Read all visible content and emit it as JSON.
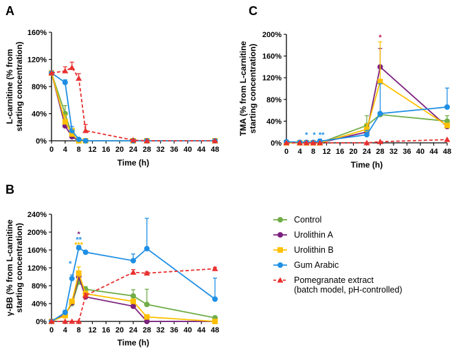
{
  "legend": {
    "items": [
      {
        "key": "control",
        "label": "Control",
        "color": "#70ad47",
        "marker": "circle",
        "dash": false
      },
      {
        "key": "uroA",
        "label": "Urolithin A",
        "color": "#7b1f7e",
        "marker": "circle",
        "dash": false
      },
      {
        "key": "uroB",
        "label": "Urolithin B",
        "color": "#ffc000",
        "marker": "square",
        "dash": false
      },
      {
        "key": "gum",
        "label": "Gum Arabic",
        "color": "#1f8fe5",
        "marker": "circle",
        "dash": false
      },
      {
        "key": "pome",
        "label": "Pomegranate extract",
        "label2": "(batch model, pH-controlled)",
        "color": "#e8302f",
        "marker": "triangle",
        "dash": true
      }
    ]
  },
  "chart_data": [
    {
      "panel": "A",
      "type": "line",
      "xlabel": "Time (h)",
      "ylabel": [
        "L-carnitine (% from",
        "starting concentration)"
      ],
      "xlim": [
        0,
        48
      ],
      "ylim": [
        0,
        160
      ],
      "xticks": [
        0,
        4,
        8,
        12,
        16,
        20,
        24,
        28,
        32,
        36,
        40,
        44,
        48
      ],
      "yticks": [
        0,
        40,
        80,
        120,
        160
      ],
      "yticklabels": [
        "0%",
        "40%",
        "80%",
        "120%",
        "160%"
      ],
      "series": [
        {
          "key": "control",
          "points": [
            [
              0,
              100
            ],
            [
              4,
              40
            ],
            [
              6,
              8
            ],
            [
              8,
              0
            ],
            [
              10,
              0
            ],
            [
              24,
              0
            ],
            [
              28,
              0
            ],
            [
              48,
              0
            ]
          ],
          "err": [
            0,
            12,
            3,
            0,
            0,
            0,
            0,
            0
          ]
        },
        {
          "key": "uroA",
          "points": [
            [
              0,
              100
            ],
            [
              4,
              22
            ],
            [
              6,
              6
            ],
            [
              8,
              0
            ],
            [
              10,
              0
            ],
            [
              24,
              0
            ],
            [
              28,
              0
            ],
            [
              48,
              0
            ]
          ],
          "err": [
            0,
            8,
            2,
            0,
            0,
            0,
            0,
            0
          ]
        },
        {
          "key": "uroB",
          "points": [
            [
              0,
              100
            ],
            [
              4,
              28
            ],
            [
              6,
              10
            ],
            [
              8,
              0
            ],
            [
              10,
              0
            ],
            [
              24,
              0
            ],
            [
              28,
              0
            ],
            [
              48,
              0
            ]
          ],
          "err": [
            0,
            10,
            3,
            0,
            0,
            0,
            0,
            0
          ]
        },
        {
          "key": "gum",
          "points": [
            [
              0,
              100
            ],
            [
              4,
              86
            ],
            [
              6,
              15
            ],
            [
              8,
              2
            ],
            [
              10,
              0
            ],
            [
              24,
              0
            ],
            [
              28,
              0
            ],
            [
              48,
              0
            ]
          ],
          "err": [
            0,
            4,
            6,
            1,
            0,
            0,
            0,
            0
          ]
        },
        {
          "key": "pome",
          "points": [
            [
              0,
              100
            ],
            [
              4,
              103
            ],
            [
              6,
              108
            ],
            [
              8,
              92
            ],
            [
              10,
              15
            ],
            [
              24,
              1
            ],
            [
              28,
              0
            ],
            [
              48,
              0
            ]
          ],
          "err": [
            0,
            6,
            8,
            7,
            9,
            0,
            0,
            0
          ]
        }
      ],
      "annotations": [
        {
          "text": "*",
          "x": 6.5,
          "y": 12,
          "color": "#ffc000"
        }
      ]
    },
    {
      "panel": "B",
      "type": "line",
      "xlabel": "Time (h)",
      "ylabel": [
        "γ-BB (% from L-carnitine",
        "starting concentration)"
      ],
      "xlim": [
        0,
        48
      ],
      "ylim": [
        0,
        240
      ],
      "xticks": [
        0,
        4,
        8,
        12,
        16,
        20,
        24,
        28,
        32,
        36,
        40,
        44,
        48
      ],
      "yticks": [
        0,
        40,
        80,
        120,
        160,
        200,
        240
      ],
      "yticklabels": [
        "0%",
        "40%",
        "80%",
        "120%",
        "160%",
        "200%",
        "240%"
      ],
      "series": [
        {
          "key": "control",
          "points": [
            [
              0,
              0
            ],
            [
              4,
              15
            ],
            [
              6,
              40
            ],
            [
              8,
              88
            ],
            [
              10,
              72
            ],
            [
              24,
              57
            ],
            [
              28,
              38
            ],
            [
              48,
              8
            ]
          ],
          "err": [
            0,
            3,
            6,
            10,
            6,
            14,
            34,
            4
          ]
        },
        {
          "key": "uroA",
          "points": [
            [
              0,
              0
            ],
            [
              4,
              15
            ],
            [
              6,
              42
            ],
            [
              8,
              100
            ],
            [
              10,
              55
            ],
            [
              24,
              34
            ],
            [
              28,
              0
            ],
            [
              48,
              0
            ]
          ],
          "err": [
            0,
            3,
            5,
            10,
            6,
            5,
            0,
            0
          ]
        },
        {
          "key": "uroB",
          "points": [
            [
              0,
              0
            ],
            [
              4,
              13
            ],
            [
              6,
              45
            ],
            [
              8,
              108
            ],
            [
              10,
              62
            ],
            [
              24,
              45
            ],
            [
              28,
              10
            ],
            [
              48,
              0
            ]
          ],
          "err": [
            0,
            3,
            5,
            14,
            6,
            5,
            4,
            0
          ]
        },
        {
          "key": "gum",
          "points": [
            [
              0,
              0
            ],
            [
              4,
              20
            ],
            [
              6,
              96
            ],
            [
              8,
              165
            ],
            [
              10,
              155
            ],
            [
              24,
              136
            ],
            [
              28,
              163
            ],
            [
              48,
              50
            ]
          ],
          "err": [
            0,
            5,
            8,
            5,
            2,
            15,
            68,
            47
          ]
        },
        {
          "key": "pome",
          "points": [
            [
              0,
              0
            ],
            [
              4,
              0
            ],
            [
              6,
              0
            ],
            [
              8,
              0
            ],
            [
              10,
              58
            ],
            [
              24,
              110
            ],
            [
              28,
              108
            ],
            [
              48,
              118
            ]
          ],
          "err": [
            0,
            0,
            0,
            0,
            5,
            6,
            3,
            3
          ]
        }
      ],
      "annotations": [
        {
          "text": "*",
          "x": 5.5,
          "y": 124,
          "color": "#1f8fe5"
        },
        {
          "text": "*",
          "x": 8,
          "y": 190,
          "color": "#7b1f7e"
        },
        {
          "text": "**",
          "x": 8,
          "y": 178,
          "color": "#1f8fe5"
        },
        {
          "text": "***",
          "x": 8,
          "y": 166,
          "color": "#ffc000"
        }
      ]
    },
    {
      "panel": "C",
      "type": "line",
      "xlabel": "Time (h)",
      "ylabel": [
        "TMA (% from L-carnitine",
        "starting concentration)"
      ],
      "xlim": [
        0,
        48
      ],
      "ylim": [
        0,
        200
      ],
      "xticks": [
        0,
        4,
        8,
        12,
        16,
        20,
        24,
        28,
        32,
        36,
        40,
        44,
        48
      ],
      "yticks": [
        0,
        40,
        80,
        120,
        160,
        200
      ],
      "yticklabels": [
        "0%",
        "40%",
        "80%",
        "120%",
        "160%",
        "200%"
      ],
      "series": [
        {
          "key": "control",
          "points": [
            [
              0,
              0
            ],
            [
              4,
              0
            ],
            [
              6,
              0
            ],
            [
              8,
              0
            ],
            [
              10,
              0
            ],
            [
              24,
              32
            ],
            [
              28,
              52
            ],
            [
              48,
              40
            ]
          ],
          "err": [
            0,
            0,
            0,
            0,
            0,
            18,
            2,
            10
          ]
        },
        {
          "key": "uroA",
          "points": [
            [
              0,
              0
            ],
            [
              4,
              0
            ],
            [
              6,
              0
            ],
            [
              8,
              0
            ],
            [
              10,
              0
            ],
            [
              24,
              20
            ],
            [
              28,
              140
            ],
            [
              48,
              30
            ]
          ],
          "err": [
            0,
            0,
            0,
            0,
            0,
            8,
            34,
            4
          ]
        },
        {
          "key": "uroB",
          "points": [
            [
              0,
              0
            ],
            [
              4,
              0
            ],
            [
              6,
              0
            ],
            [
              8,
              0
            ],
            [
              10,
              0
            ],
            [
              24,
              25
            ],
            [
              28,
              113
            ],
            [
              48,
              32
            ]
          ],
          "err": [
            0,
            0,
            0,
            0,
            0,
            10,
            73,
            4
          ]
        },
        {
          "key": "gum",
          "points": [
            [
              0,
              2
            ],
            [
              4,
              1
            ],
            [
              6,
              1
            ],
            [
              8,
              1
            ],
            [
              10,
              3
            ],
            [
              24,
              15
            ],
            [
              28,
              54
            ],
            [
              48,
              66
            ]
          ],
          "err": [
            2,
            1,
            1,
            1,
            4,
            8,
            55,
            35
          ]
        },
        {
          "key": "pome",
          "points": [
            [
              0,
              0
            ],
            [
              4,
              0
            ],
            [
              6,
              0
            ],
            [
              8,
              0
            ],
            [
              10,
              0
            ],
            [
              24,
              0
            ],
            [
              28,
              2
            ],
            [
              48,
              6
            ]
          ],
          "err": [
            0,
            0,
            0,
            0,
            0,
            0,
            0,
            0
          ]
        }
      ],
      "annotations": [
        {
          "text": "*",
          "x": 6,
          "y": 10,
          "color": "#1f8fe5"
        },
        {
          "text": "*",
          "x": 8.3,
          "y": 10,
          "color": "#1f8fe5"
        },
        {
          "text": "**",
          "x": 10.5,
          "y": 10,
          "color": "#1f8fe5"
        },
        {
          "text": "*",
          "x": 28,
          "y": 190,
          "color": "#c0194e"
        }
      ]
    }
  ]
}
